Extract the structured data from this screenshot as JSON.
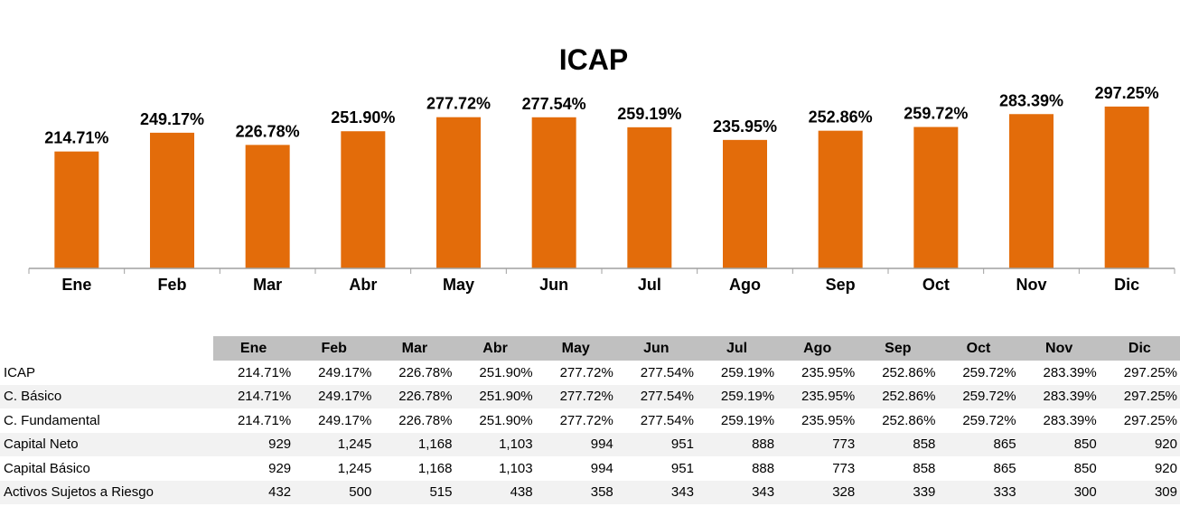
{
  "chart_data": {
    "type": "bar",
    "title": "ICAP",
    "categories": [
      "Ene",
      "Feb",
      "Mar",
      "Abr",
      "May",
      "Jun",
      "Jul",
      "Ago",
      "Sep",
      "Oct",
      "Nov",
      "Dic"
    ],
    "values": [
      214.71,
      249.17,
      226.78,
      251.9,
      277.72,
      277.54,
      259.19,
      235.95,
      252.86,
      259.72,
      283.39,
      297.25
    ],
    "data_labels": [
      "214.71%",
      "249.17%",
      "226.78%",
      "251.90%",
      "277.72%",
      "277.54%",
      "259.19%",
      "235.95%",
      "252.86%",
      "259.72%",
      "283.39%",
      "297.25%"
    ],
    "xlabel": "",
    "ylabel": "",
    "ylim": [
      0,
      400
    ],
    "grid": false,
    "bar_color": "#e36c0a"
  },
  "table": {
    "headers": [
      "Ene",
      "Feb",
      "Mar",
      "Abr",
      "May",
      "Jun",
      "Jul",
      "Ago",
      "Sep",
      "Oct",
      "Nov",
      "Dic"
    ],
    "rows": [
      {
        "label": "ICAP",
        "values": [
          "214.71%",
          "249.17%",
          "226.78%",
          "251.90%",
          "277.72%",
          "277.54%",
          "259.19%",
          "235.95%",
          "252.86%",
          "259.72%",
          "283.39%",
          "297.25%"
        ]
      },
      {
        "label": "C. Básico",
        "values": [
          "214.71%",
          "249.17%",
          "226.78%",
          "251.90%",
          "277.72%",
          "277.54%",
          "259.19%",
          "235.95%",
          "252.86%",
          "259.72%",
          "283.39%",
          "297.25%"
        ]
      },
      {
        "label": "C. Fundamental",
        "values": [
          "214.71%",
          "249.17%",
          "226.78%",
          "251.90%",
          "277.72%",
          "277.54%",
          "259.19%",
          "235.95%",
          "252.86%",
          "259.72%",
          "283.39%",
          "297.25%"
        ]
      },
      {
        "label": "Capital Neto",
        "values": [
          "929",
          "1,245",
          "1,168",
          "1,103",
          "994",
          "951",
          "888",
          "773",
          "858",
          "865",
          "850",
          "920"
        ]
      },
      {
        "label": "Capital Básico",
        "values": [
          "929",
          "1,245",
          "1,168",
          "1,103",
          "994",
          "951",
          "888",
          "773",
          "858",
          "865",
          "850",
          "920"
        ]
      },
      {
        "label": "Activos Sujetos a Riesgo",
        "values": [
          "432",
          "500",
          "515",
          "438",
          "358",
          "343",
          "343",
          "328",
          "339",
          "333",
          "300",
          "309"
        ]
      }
    ]
  }
}
